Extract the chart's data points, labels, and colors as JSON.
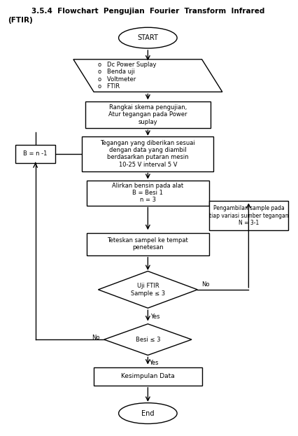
{
  "bg_color": "#ffffff",
  "title_line1": "3.5.4  Flowchart  Pengujian  Fourier  Transform  Infrared",
  "title_line2": "(FTIR)",
  "start_label": "START",
  "end_label": "End",
  "para_label": "o   Dc Power Suplay\no   Benda uji\no   Voltmeter\no   FTIR",
  "box1_label": "Rangkai skema pengujian,\nAtur tegangan pada Power\nsuplay",
  "box2_label": "Tegangan yang diberikan sesuai\ndengan data yang diambil\nberdasarkan putaran mesin\n10-25 V interval 5 V",
  "box3_label": "Alirkan bensin pada alat\nB = Besi 1\nn = 3",
  "box4_label": "Teteskan sampel ke tempat\npenetesan",
  "diamond1_label": "Uji FTIR\nSample ≤ 3",
  "diamond2_label": "Besi ≤ 3",
  "box5_label": "Kesimpulan Data",
  "bn_label": "B = n -1",
  "rb_label": "Pengambilan sample pada\ntiap variasi sumber tegangan\nN = 3-1",
  "yes_label": "Yes",
  "no_label": "No"
}
